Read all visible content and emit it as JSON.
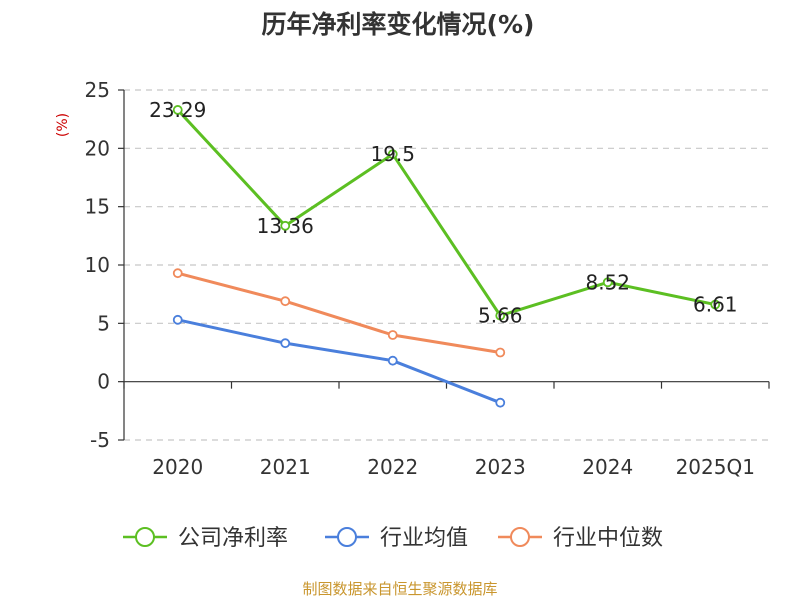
{
  "chart_data": {
    "type": "line",
    "title": "历年净利率变化情况(%)",
    "ylabel": "(%)",
    "categories": [
      "2020",
      "2021",
      "2022",
      "2023",
      "2024",
      "2025Q1"
    ],
    "ylim": [
      -5,
      25
    ],
    "yticks": [
      25,
      20,
      15,
      10,
      5,
      0,
      -5
    ],
    "grid": true,
    "legend_position": "bottom",
    "series": [
      {
        "name": "公司净利率",
        "color": "#5cbf22",
        "values": [
          23.29,
          13.36,
          19.5,
          5.66,
          8.52,
          6.61
        ],
        "labels": [
          "23.29",
          "13.36",
          "19.5",
          "5.66",
          "8.52",
          "6.61"
        ]
      },
      {
        "name": "行业均值",
        "color": "#4a7fdc",
        "values": [
          5.3,
          3.3,
          1.8,
          -1.8,
          null,
          null
        ]
      },
      {
        "name": "行业中位数",
        "color": "#f08a5b",
        "values": [
          9.3,
          6.9,
          4.0,
          2.5,
          null,
          null
        ]
      }
    ]
  },
  "source": {
    "text": "制图数据来自恒生聚源数据库",
    "color": "#c9962e"
  },
  "colors": {
    "axis": "#333333",
    "grid": "#c8c8c8",
    "ylabel": "#cc0000"
  }
}
